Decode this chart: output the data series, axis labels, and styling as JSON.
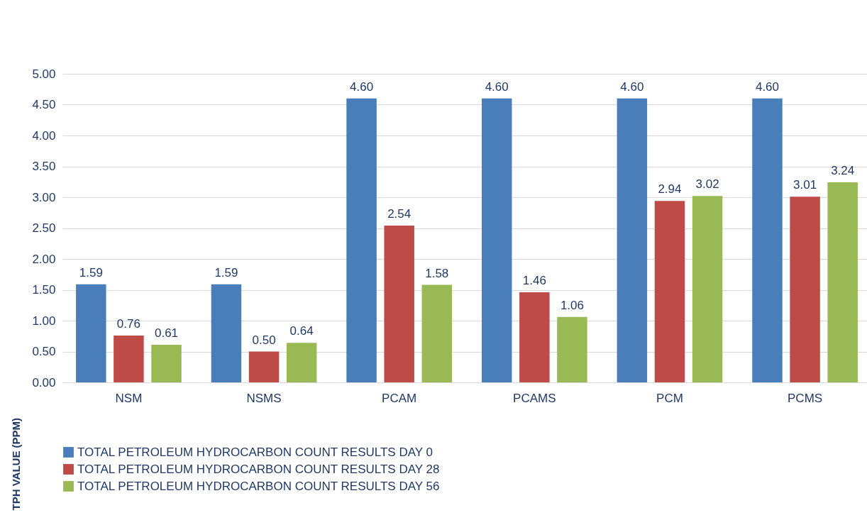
{
  "chart_data": {
    "type": "bar",
    "ylabel": "TPH VALUE (PPM)",
    "categories": [
      "NSM",
      "NSMS",
      "PCAM",
      "PCAMS",
      "PCM",
      "PCMS"
    ],
    "series": [
      {
        "name": "TOTAL PETROLEUM HYDROCARBON COUNT RESULTS DAY 0",
        "color": "#4a7ebb",
        "values": [
          1.59,
          1.59,
          4.6,
          4.6,
          4.6,
          4.6
        ],
        "value_labels": [
          "1.59",
          "1.59",
          "4.60",
          "4.60",
          "4.60",
          "4.60"
        ]
      },
      {
        "name": "TOTAL PETROLEUM HYDROCARBON COUNT RESULTS DAY 28",
        "color": "#be4b48",
        "values": [
          0.76,
          0.5,
          2.54,
          1.46,
          2.94,
          3.01
        ],
        "value_labels": [
          "0.76",
          "0.50",
          "2.54",
          "1.46",
          "2.94",
          "3.01"
        ]
      },
      {
        "name": "TOTAL PETROLEUM HYDROCARBON COUNT RESULTS DAY 56",
        "color": "#98b954",
        "values": [
          0.61,
          0.64,
          1.58,
          1.06,
          3.02,
          3.24
        ],
        "value_labels": [
          "0.61",
          "0.64",
          "1.58",
          "1.06",
          "3.02",
          "3.24"
        ]
      }
    ],
    "ylim": [
      0,
      5
    ],
    "yticks": [
      {
        "value": 0,
        "label": "0.00"
      },
      {
        "value": 0.5,
        "label": "0.50"
      },
      {
        "value": 1,
        "label": "1.00"
      },
      {
        "value": 1.5,
        "label": "1.50"
      },
      {
        "value": 2,
        "label": "2.00"
      },
      {
        "value": 2.5,
        "label": "2.50"
      },
      {
        "value": 3,
        "label": "3.00"
      },
      {
        "value": 3.5,
        "label": "3.50"
      },
      {
        "value": 4,
        "label": "4.00"
      },
      {
        "value": 4.5,
        "label": "4.50"
      },
      {
        "value": 5,
        "label": "5.00"
      }
    ],
    "grid": "y",
    "legend": "bottom"
  }
}
